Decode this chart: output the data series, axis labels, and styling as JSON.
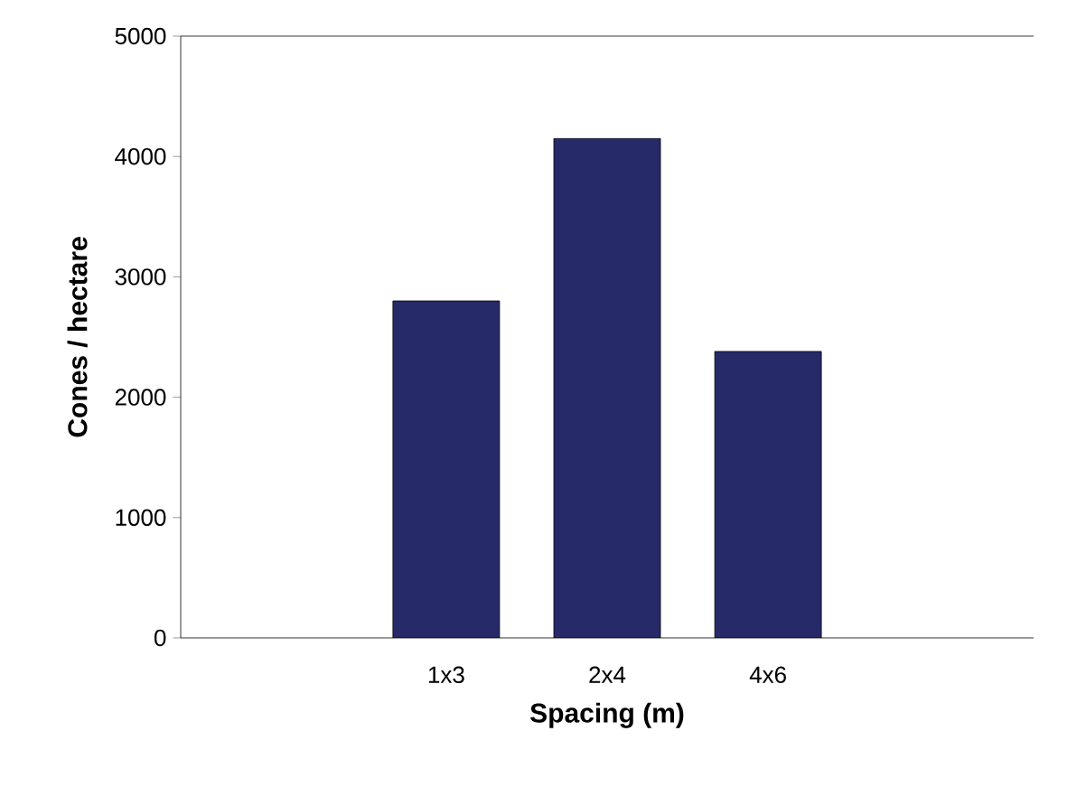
{
  "chart_data": {
    "type": "bar",
    "xlabel": "Spacing (m)",
    "ylabel": "Cones / hectare",
    "categories": [
      "1x3",
      "2x4",
      "4x6"
    ],
    "values": [
      2800,
      4150,
      2380
    ],
    "color": "#262a68",
    "ylim": [
      0,
      5000
    ],
    "yticks": [
      0,
      1000,
      2000,
      3000,
      4000,
      5000
    ]
  }
}
